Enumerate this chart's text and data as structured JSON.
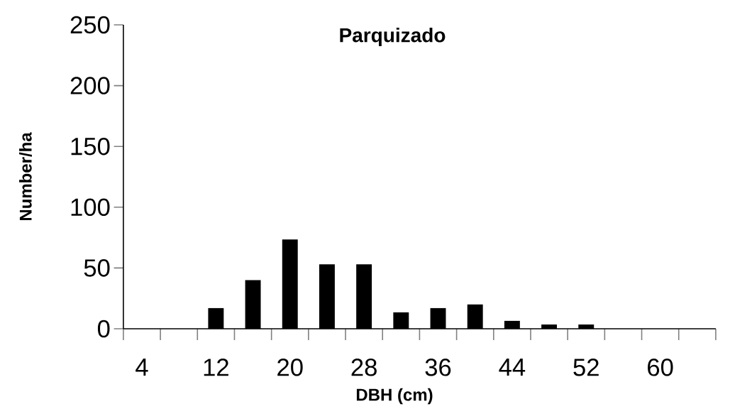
{
  "chart_data": {
    "type": "bar",
    "title": "Parquizado",
    "xlabel": "DBH (cm)",
    "ylabel": "Number/ha",
    "categories": [
      "4",
      null,
      "12",
      null,
      "20",
      null,
      "28",
      null,
      "36",
      null,
      "44",
      null,
      "52",
      null,
      "60",
      null
    ],
    "values": [
      0,
      0,
      17,
      40,
      73.5,
      53,
      53,
      13.5,
      17,
      20,
      6.5,
      3.5,
      3.5,
      0,
      0,
      0
    ],
    "color": "#000000",
    "ylim": [
      0,
      250
    ],
    "yticks": [
      0,
      50,
      100,
      150,
      200,
      250
    ]
  }
}
